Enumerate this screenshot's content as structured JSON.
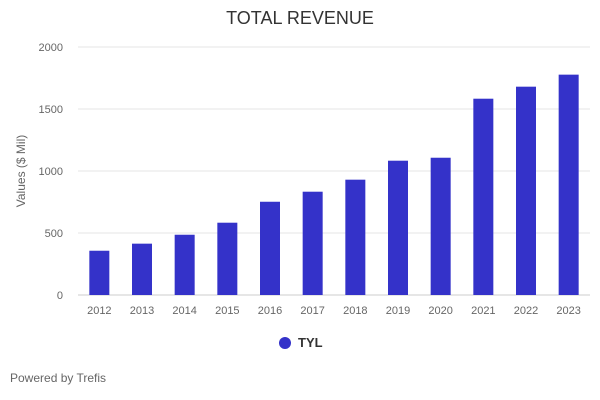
{
  "chart_data": {
    "type": "bar",
    "title": "TOTAL REVENUE",
    "xlabel": "",
    "ylabel": "Values ($ Mil)",
    "ylim": [
      0,
      2000
    ],
    "yticks": [
      0,
      500,
      1000,
      1500,
      2000
    ],
    "grid": true,
    "legend_placement": "bottom",
    "categories": [
      "2012",
      "2013",
      "2014",
      "2015",
      "2016",
      "2017",
      "2018",
      "2019",
      "2020",
      "2021",
      "2022",
      "2023"
    ],
    "series": [
      {
        "name": "TYL",
        "color": "#3432c9",
        "values": [
          357,
          414,
          486,
          583,
          752,
          833,
          930,
          1083,
          1107,
          1583,
          1680,
          1777
        ]
      }
    ]
  },
  "footer": {
    "credit": "Powered by Trefis"
  }
}
